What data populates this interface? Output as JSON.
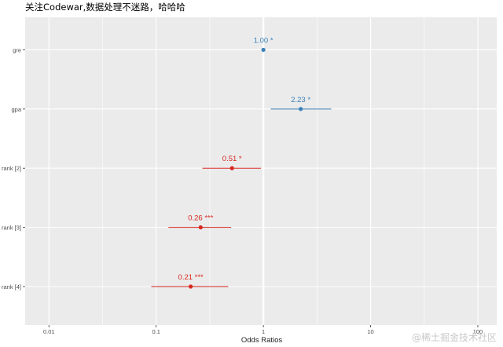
{
  "title": "关注Codewar,数据处理不迷路，哈哈哈",
  "watermark": "@稀土掘金技术社区",
  "chart_data": {
    "type": "forest",
    "xlabel": "Odds Ratios",
    "xscale": "log10",
    "xlim": [
      0.006,
      150
    ],
    "x_ticks": [
      0.01,
      0.1,
      1,
      10,
      100
    ],
    "x_tick_labels": [
      "0.01",
      "0.1",
      "1",
      "10",
      "100"
    ],
    "reference_line": 1,
    "grid": true,
    "colors": {
      "positive": "#3a80b9",
      "negative": "#d7281f",
      "panel": "#ebebeb",
      "grid": "#ffffff"
    },
    "terms": [
      {
        "term": "gre",
        "estimate": 1.0,
        "ci_low": 1.0,
        "ci_high": 1.0,
        "label": "1.00 *",
        "direction": "positive"
      },
      {
        "term": "gpa",
        "estimate": 2.23,
        "ci_low": 1.17,
        "ci_high": 4.3,
        "label": "2.23 *",
        "direction": "positive"
      },
      {
        "term": "rank [2]",
        "estimate": 0.51,
        "ci_low": 0.27,
        "ci_high": 0.95,
        "label": "0.51 *",
        "direction": "negative"
      },
      {
        "term": "rank [3]",
        "estimate": 0.26,
        "ci_low": 0.13,
        "ci_high": 0.5,
        "label": "0.26 ***",
        "direction": "negative"
      },
      {
        "term": "rank [4]",
        "estimate": 0.21,
        "ci_low": 0.09,
        "ci_high": 0.47,
        "label": "0.21 ***",
        "direction": "negative"
      }
    ]
  }
}
